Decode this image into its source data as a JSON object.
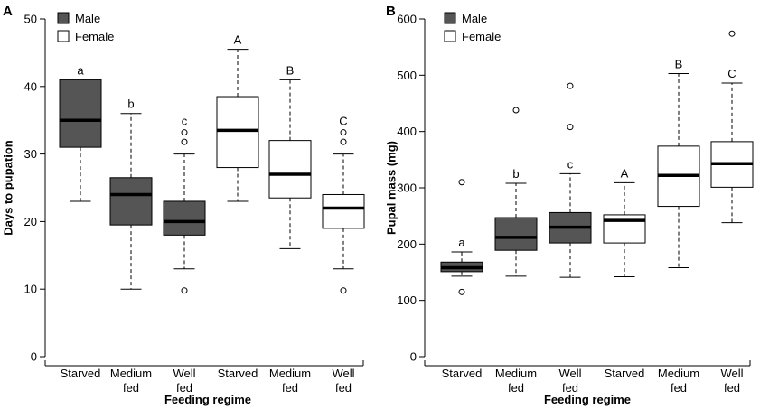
{
  "chart_data": [
    {
      "type": "box",
      "panel_label": "A",
      "ylabel": "Days to pupation",
      "xlabel": "Feeding regime",
      "ylim": [
        0,
        50
      ],
      "yticks": [
        "0",
        "10",
        "20",
        "30",
        "40",
        "50"
      ],
      "legend": [
        {
          "name": "Male",
          "color": "#555555"
        },
        {
          "name": "Female",
          "color": "#ffffff"
        }
      ],
      "boxes": [
        {
          "label": [
            "Starved"
          ],
          "group": "Male",
          "whisker_low": 23,
          "q1": 31,
          "median": 35,
          "q3": 41,
          "whisker_high": 41,
          "outliers": [],
          "letter": "a"
        },
        {
          "label": [
            "Medium",
            "fed"
          ],
          "group": "Male",
          "whisker_low": 10,
          "q1": 19.5,
          "median": 24,
          "q3": 26.5,
          "whisker_high": 36,
          "outliers": [],
          "letter": "b"
        },
        {
          "label": [
            "Well",
            "fed"
          ],
          "group": "Male",
          "whisker_low": 13,
          "q1": 18,
          "median": 20,
          "q3": 23,
          "whisker_high": 30,
          "outliers": [
            9.8,
            31.8,
            33.2
          ],
          "letter": "c"
        },
        {
          "label": [
            "Starved"
          ],
          "group": "Female",
          "whisker_low": 23,
          "q1": 28,
          "median": 33.5,
          "q3": 38.5,
          "whisker_high": 45.5,
          "outliers": [],
          "letter": "A"
        },
        {
          "label": [
            "Medium",
            "fed"
          ],
          "group": "Female",
          "whisker_low": 16,
          "q1": 23.5,
          "median": 27,
          "q3": 32,
          "whisker_high": 41,
          "outliers": [],
          "letter": "B"
        },
        {
          "label": [
            "Well",
            "fed"
          ],
          "group": "Female",
          "whisker_low": 13,
          "q1": 19,
          "median": 22,
          "q3": 24,
          "whisker_high": 30,
          "outliers": [
            9.8,
            31.8,
            33.2
          ],
          "letter": "C"
        }
      ]
    },
    {
      "type": "box",
      "panel_label": "B",
      "ylabel": "Pupal mass (mg)",
      "xlabel": "Feeding regime",
      "ylim": [
        0,
        600
      ],
      "yticks": [
        "0",
        "100",
        "200",
        "300",
        "400",
        "500",
        "600"
      ],
      "legend": [
        {
          "name": "Male",
          "color": "#555555"
        },
        {
          "name": "Female",
          "color": "#ffffff"
        }
      ],
      "boxes": [
        {
          "label": [
            "Starved"
          ],
          "group": "Male",
          "whisker_low": 143,
          "q1": 151,
          "median": 158,
          "q3": 168,
          "whisker_high": 186,
          "outliers": [
            115,
            310
          ],
          "letter": "a"
        },
        {
          "label": [
            "Medium",
            "fed"
          ],
          "group": "Male",
          "whisker_low": 143,
          "q1": 189,
          "median": 212,
          "q3": 247,
          "whisker_high": 308,
          "outliers": [
            438
          ],
          "letter": "b"
        },
        {
          "label": [
            "Well",
            "fed"
          ],
          "group": "Male",
          "whisker_low": 141,
          "q1": 202,
          "median": 230,
          "q3": 256,
          "whisker_high": 325,
          "outliers": [
            408,
            481
          ],
          "letter": "c"
        },
        {
          "label": [
            "Starved"
          ],
          "group": "Female",
          "whisker_low": 142,
          "q1": 202,
          "median": 242,
          "q3": 252,
          "whisker_high": 309,
          "outliers": [],
          "letter": "A"
        },
        {
          "label": [
            "Medium",
            "fed"
          ],
          "group": "Female",
          "whisker_low": 158,
          "q1": 267,
          "median": 322,
          "q3": 374,
          "whisker_high": 503,
          "outliers": [],
          "letter": "B"
        },
        {
          "label": [
            "Well",
            "fed"
          ],
          "group": "Female",
          "whisker_low": 238,
          "q1": 301,
          "median": 343,
          "q3": 382,
          "whisker_high": 486,
          "outliers": [
            574
          ],
          "letter": "C"
        }
      ]
    }
  ]
}
